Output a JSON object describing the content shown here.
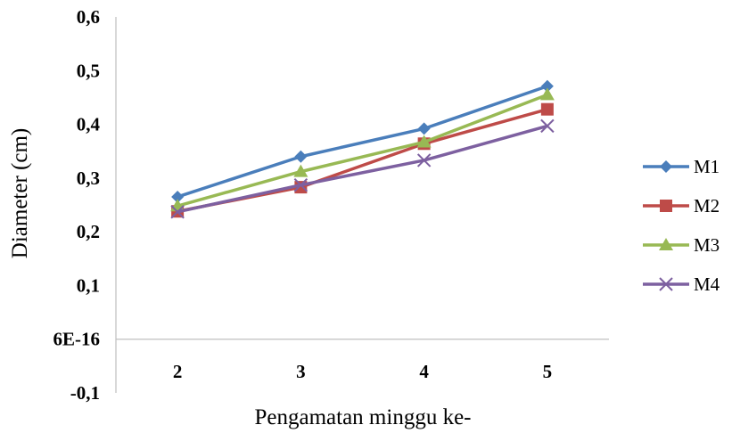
{
  "chart_data": {
    "type": "line",
    "xlabel": "Pengamatan minggu ke-",
    "ylabel": "Diameter (cm)",
    "categories": [
      "2",
      "3",
      "4",
      "5"
    ],
    "ylim": [
      -0.1,
      0.6
    ],
    "yticks": [
      "0,6",
      "0,5",
      "0,4",
      "0,3",
      "0,2",
      "0,1",
      "6E-16",
      "-0,1"
    ],
    "ytick_values": [
      0.6,
      0.5,
      0.4,
      0.3,
      0.2,
      0.1,
      0.0,
      -0.1
    ],
    "legend_position": "right",
    "series": [
      {
        "name": "M1",
        "values": [
          0.265,
          0.34,
          0.392,
          0.471
        ],
        "color": "#4a7ebb",
        "marker": "diamond"
      },
      {
        "name": "M2",
        "values": [
          0.238,
          0.283,
          0.364,
          0.428
        ],
        "color": "#be4b48",
        "marker": "square"
      },
      {
        "name": "M3",
        "values": [
          0.248,
          0.312,
          0.367,
          0.455
        ],
        "color": "#98b954",
        "marker": "triangle"
      },
      {
        "name": "M4",
        "values": [
          0.237,
          0.287,
          0.333,
          0.397
        ],
        "color": "#7d60a0",
        "marker": "x"
      }
    ]
  }
}
